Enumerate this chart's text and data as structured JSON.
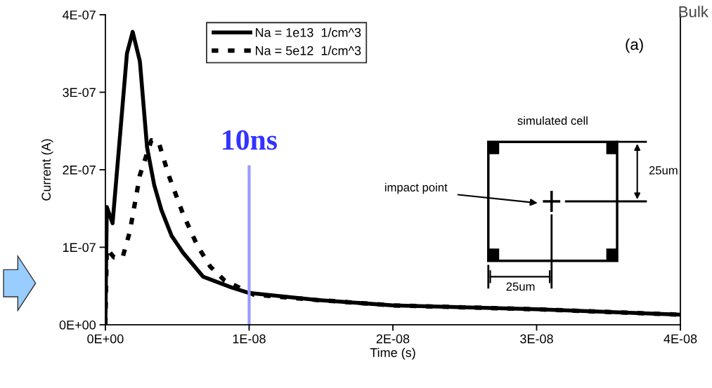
{
  "chart_data": {
    "type": "line",
    "xlabel": "Time (s)",
    "ylabel": "Current (A)",
    "xlim": [
      0,
      4e-08
    ],
    "ylim": [
      0,
      4e-07
    ],
    "xticks": [
      {
        "value": 0,
        "label": "0E+00"
      },
      {
        "value": 1e-08,
        "label": "1E-08"
      },
      {
        "value": 2e-08,
        "label": "2E-08"
      },
      {
        "value": 3e-08,
        "label": "3E-08"
      },
      {
        "value": 4e-08,
        "label": "4E-08"
      }
    ],
    "yticks": [
      {
        "value": 0,
        "label": "0E+00"
      },
      {
        "value": 1e-07,
        "label": "1E-07"
      },
      {
        "value": 2e-07,
        "label": "2E-07"
      },
      {
        "value": 3e-07,
        "label": "3E-07"
      },
      {
        "value": 4e-07,
        "label": "4E-07"
      }
    ],
    "legend": "top left",
    "grid": false,
    "series": [
      {
        "name": "Na = 1e13  1/cm^3",
        "color": "#000000",
        "line_style": "solid",
        "x": [
          0,
          1e-10,
          5e-10,
          1e-09,
          1.5e-09,
          1.9e-09,
          2.4e-09,
          2.9e-09,
          3.4e-09,
          3.9e-09,
          4.6e-09,
          5.4e-09,
          6.8e-09,
          8.8e-09,
          1e-08,
          1.47e-08,
          2e-08,
          3e-08,
          4e-08
        ],
        "values": [
          0,
          1.52e-07,
          1.31e-07,
          2.4e-07,
          3.5e-07,
          3.78e-07,
          3.4e-07,
          2.29e-07,
          1.8e-07,
          1.48e-07,
          1.15e-07,
          9.3e-08,
          6.2e-08,
          4.8e-08,
          4.1e-08,
          3.2e-08,
          2.5e-08,
          2e-08,
          1.3e-08
        ]
      },
      {
        "name": "Na = 5e12  1/cm^3",
        "color": "#000000",
        "line_style": "dashed",
        "x": [
          0,
          1e-10,
          6e-10,
          1.2e-09,
          1.7e-09,
          2.4e-09,
          3.2e-09,
          3.7e-09,
          4.4e-09,
          5.4e-09,
          6.4e-09,
          7.3e-09,
          8.3e-09,
          9.3e-09,
          1.03e-08,
          1.47e-08,
          2e-08,
          3e-08,
          4e-08
        ],
        "values": [
          0,
          9.8e-08,
          8.7e-08,
          8.7e-08,
          1.2e-07,
          1.93e-07,
          2.38e-07,
          2.36e-07,
          1.93e-07,
          1.43e-07,
          1.02e-07,
          7.5e-08,
          5.7e-08,
          4.8e-08,
          3.9e-08,
          3.2e-08,
          2.5e-08,
          2e-08,
          1.3e-08
        ]
      }
    ],
    "ref_lines": [
      {
        "axis": "x",
        "value": 1e-08,
        "label": "10ns",
        "color": "#9999ff",
        "line_style": "solid"
      }
    ],
    "annotations": [
      "(a)",
      "simulated cell",
      "impact point",
      "25um",
      "25um",
      "Bulk"
    ]
  }
}
